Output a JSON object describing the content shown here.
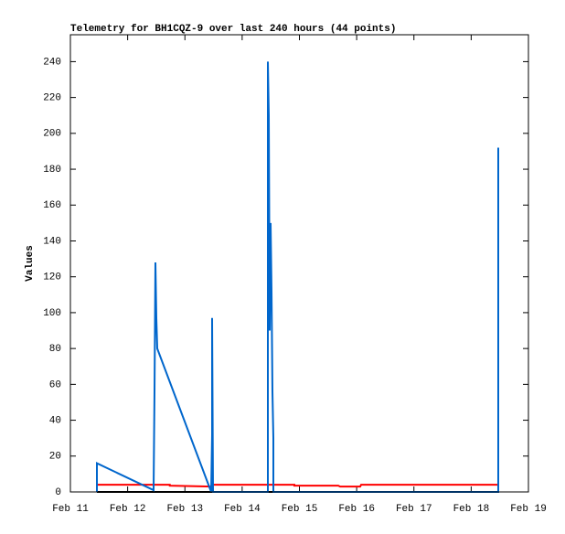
{
  "chart_data": {
    "type": "line",
    "title": "Telemetry for BH1CQZ-9 over last 240 hours (44 points)",
    "y_label": "Values",
    "xlim": [
      11,
      19
    ],
    "xticks": [
      {
        "value": 11,
        "label": "Feb 11"
      },
      {
        "value": 12,
        "label": "Feb 12"
      },
      {
        "value": 13,
        "label": "Feb 13"
      },
      {
        "value": 14,
        "label": "Feb 14"
      },
      {
        "value": 15,
        "label": "Feb 15"
      },
      {
        "value": 16,
        "label": "Feb 16"
      },
      {
        "value": 17,
        "label": "Feb 17"
      },
      {
        "value": 18,
        "label": "Feb 18"
      },
      {
        "value": 19,
        "label": "Feb 19"
      }
    ],
    "ylim": [
      0,
      255
    ],
    "yticks": [
      0,
      20,
      40,
      60,
      80,
      100,
      120,
      140,
      160,
      180,
      200,
      220,
      240
    ],
    "series": [
      {
        "color": "#000000",
        "x": [
          11.463,
          18.473
        ],
        "values": [
          0,
          0
        ]
      },
      {
        "color": "#ff0000",
        "x": [
          11.463,
          12.736,
          12.736,
          13.459,
          13.475,
          14.912,
          14.912,
          15.679,
          15.711,
          16.062,
          16.078,
          18.473
        ],
        "values": [
          4,
          4,
          3.5,
          3,
          4,
          4,
          3.5,
          3.5,
          3,
          3,
          4,
          4
        ]
      },
      {
        "color": "#0066cc",
        "x": [
          11.463,
          11.463,
          12.453,
          12.469,
          12.485,
          12.501,
          12.517,
          13.459,
          13.475,
          13.475,
          13.491,
          14.449,
          14.449,
          14.465,
          14.481,
          14.497,
          14.513,
          14.529,
          14.545,
          14.545,
          18.473,
          18.473
        ],
        "values": [
          0,
          16,
          1,
          56,
          128,
          97,
          80,
          0,
          32,
          97,
          0,
          0,
          240,
          210,
          90,
          150,
          112,
          56,
          30,
          0,
          0,
          192
        ]
      }
    ]
  }
}
